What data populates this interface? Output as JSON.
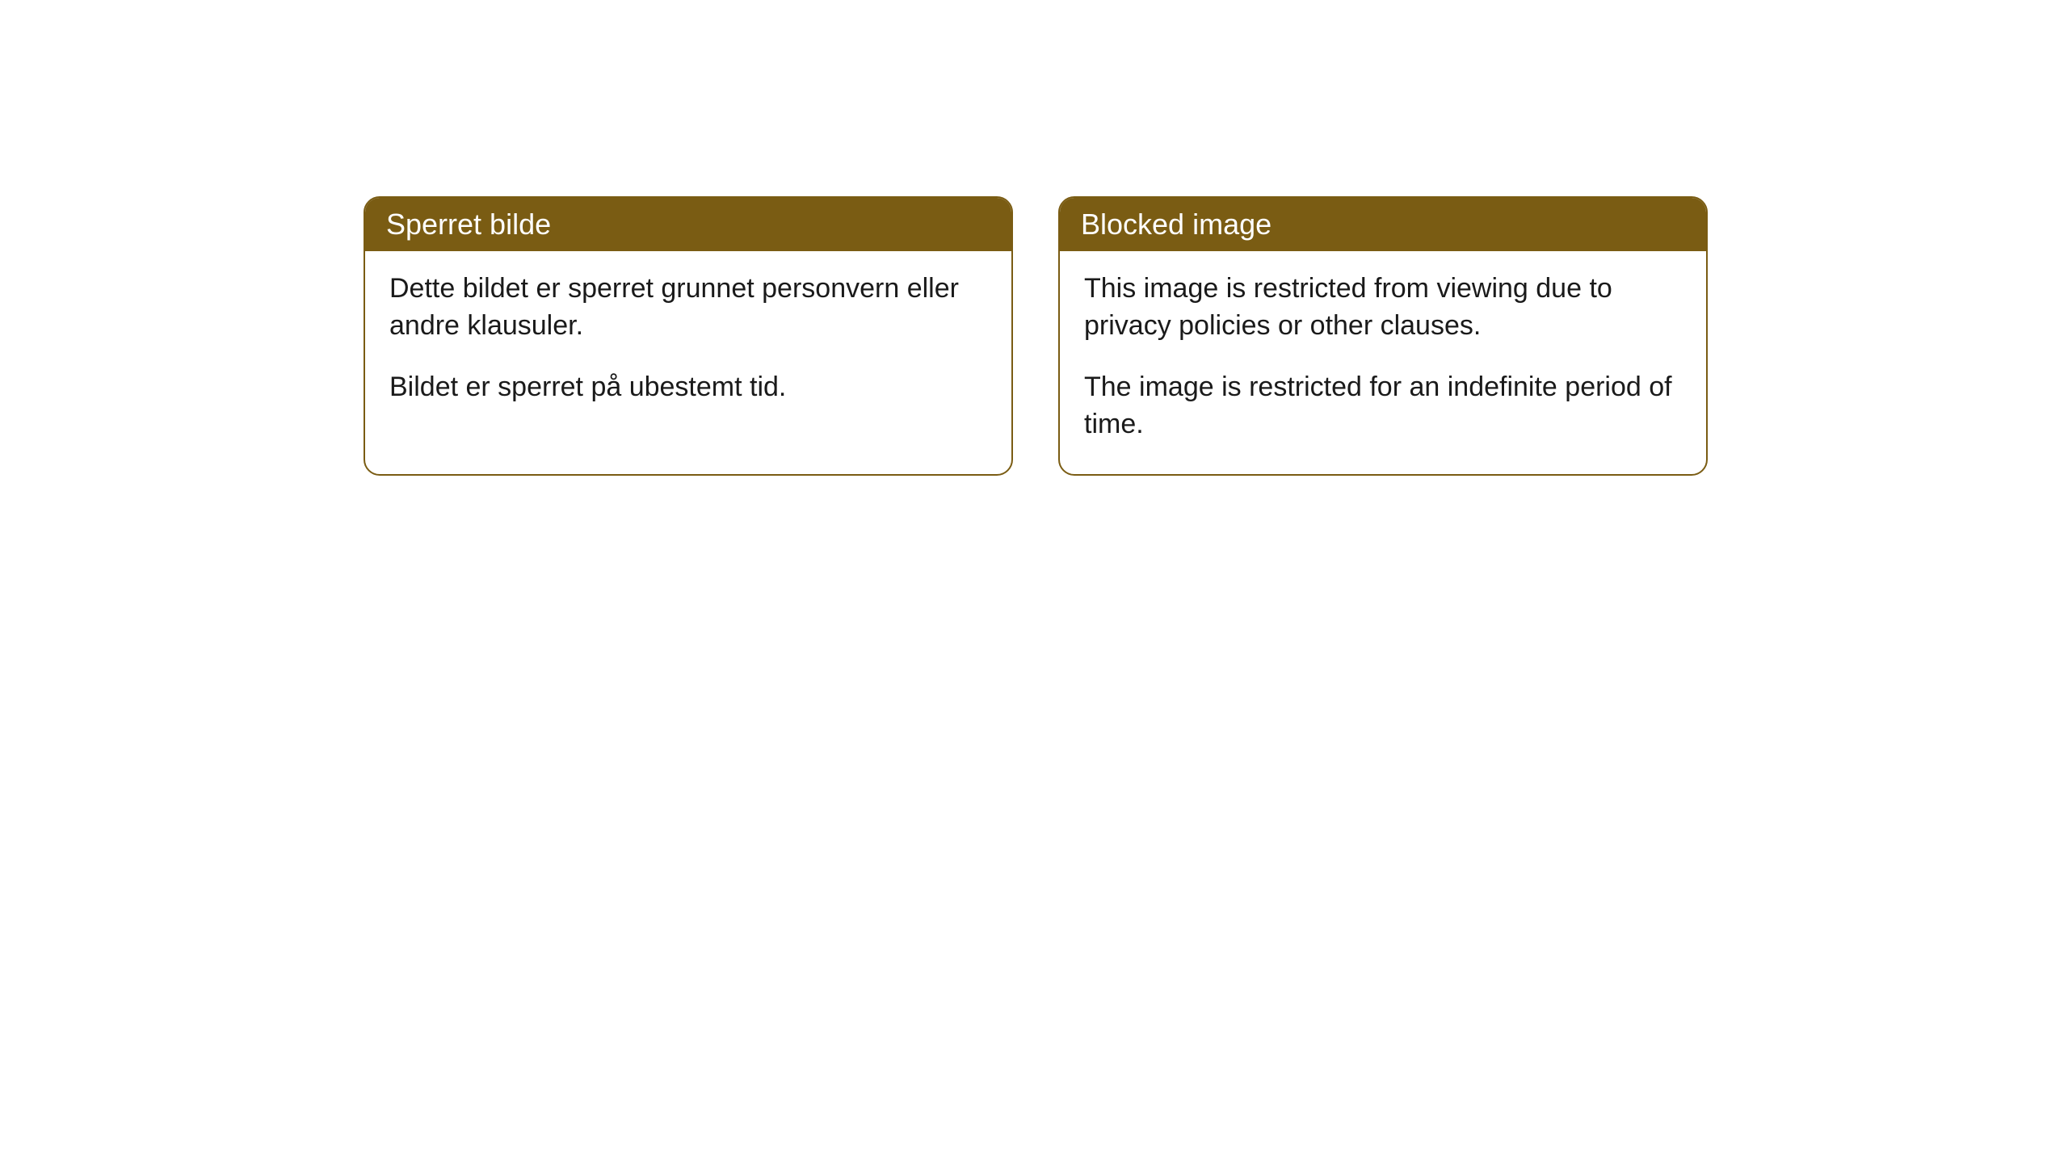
{
  "cards": [
    {
      "title": "Sperret bilde",
      "paragraph1": "Dette bildet er sperret grunnet personvern eller andre klausuler.",
      "paragraph2": "Bildet er sperret på ubestemt tid."
    },
    {
      "title": "Blocked image",
      "paragraph1": "This image is restricted from viewing due to privacy policies or other clauses.",
      "paragraph2": "The image is restricted for an indefinite period of time."
    }
  ],
  "styling": {
    "header_bg_color": "#7a5c13",
    "header_text_color": "#ffffff",
    "border_color": "#7a5c13",
    "body_bg_color": "#ffffff",
    "body_text_color": "#1a1a1a",
    "border_radius": 20,
    "header_fontsize": 36,
    "body_fontsize": 34
  }
}
